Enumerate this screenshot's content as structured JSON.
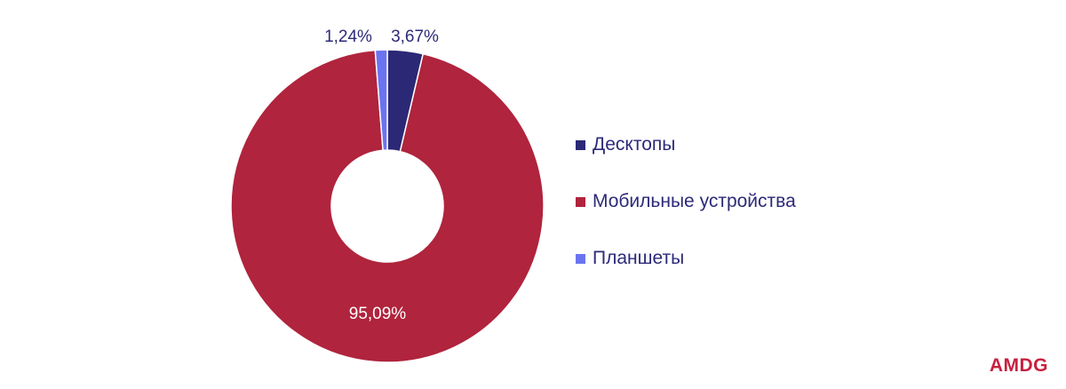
{
  "chart_data": {
    "type": "pie",
    "variant": "donut",
    "categories": [
      "Десктопы",
      "Мобильные устройства",
      "Планшеты"
    ],
    "values": [
      3.67,
      95.09,
      1.24
    ],
    "value_labels": [
      "3,67%",
      "95,09%",
      "1,24%"
    ],
    "colors": [
      "#2b2876",
      "#b0243d",
      "#6b74f0"
    ],
    "legend_position": "right"
  },
  "legend": {
    "items": [
      {
        "label": "Десктопы",
        "color": "#2b2876"
      },
      {
        "label": "Мобильные устройства",
        "color": "#b0243d"
      },
      {
        "label": "Планшеты",
        "color": "#6b74f0"
      }
    ]
  },
  "logo": {
    "text": "AMDG",
    "color": "#c8203f"
  }
}
